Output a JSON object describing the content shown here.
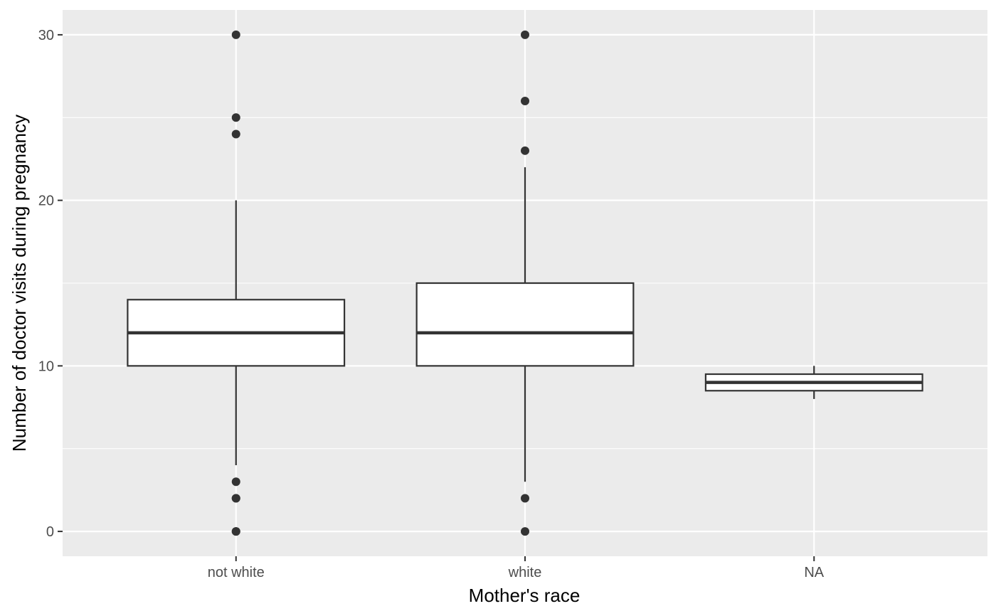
{
  "chart_data": {
    "type": "boxplot",
    "title": "",
    "xlabel": "Mother's race",
    "ylabel": "Number of doctor visits during pregnancy",
    "ylim": [
      -1.5,
      31.5
    ],
    "y_major_ticks": [
      0,
      10,
      20,
      30
    ],
    "y_minor_ticks": [
      5,
      15,
      25
    ],
    "grid": true,
    "categories": [
      "not white",
      "white",
      "NA"
    ],
    "boxes": [
      {
        "category": "not white",
        "lower_whisker": 4,
        "q1": 10,
        "median": 12,
        "q3": 14,
        "upper_whisker": 20,
        "outliers": [
          30,
          25,
          24,
          3,
          2,
          2,
          0,
          0
        ]
      },
      {
        "category": "white",
        "lower_whisker": 3,
        "q1": 10,
        "median": 12,
        "q3": 15,
        "upper_whisker": 22,
        "outliers": [
          30,
          26,
          23,
          2,
          0
        ]
      },
      {
        "category": "NA",
        "lower_whisker": 8,
        "q1": 8.5,
        "median": 9,
        "q3": 9.5,
        "upper_whisker": 10,
        "outliers": []
      }
    ],
    "colors": {
      "panel": "#ebebeb",
      "grid": "#ffffff",
      "box_fill": "#ffffff",
      "box_line": "#333333",
      "point": "#333333"
    }
  }
}
